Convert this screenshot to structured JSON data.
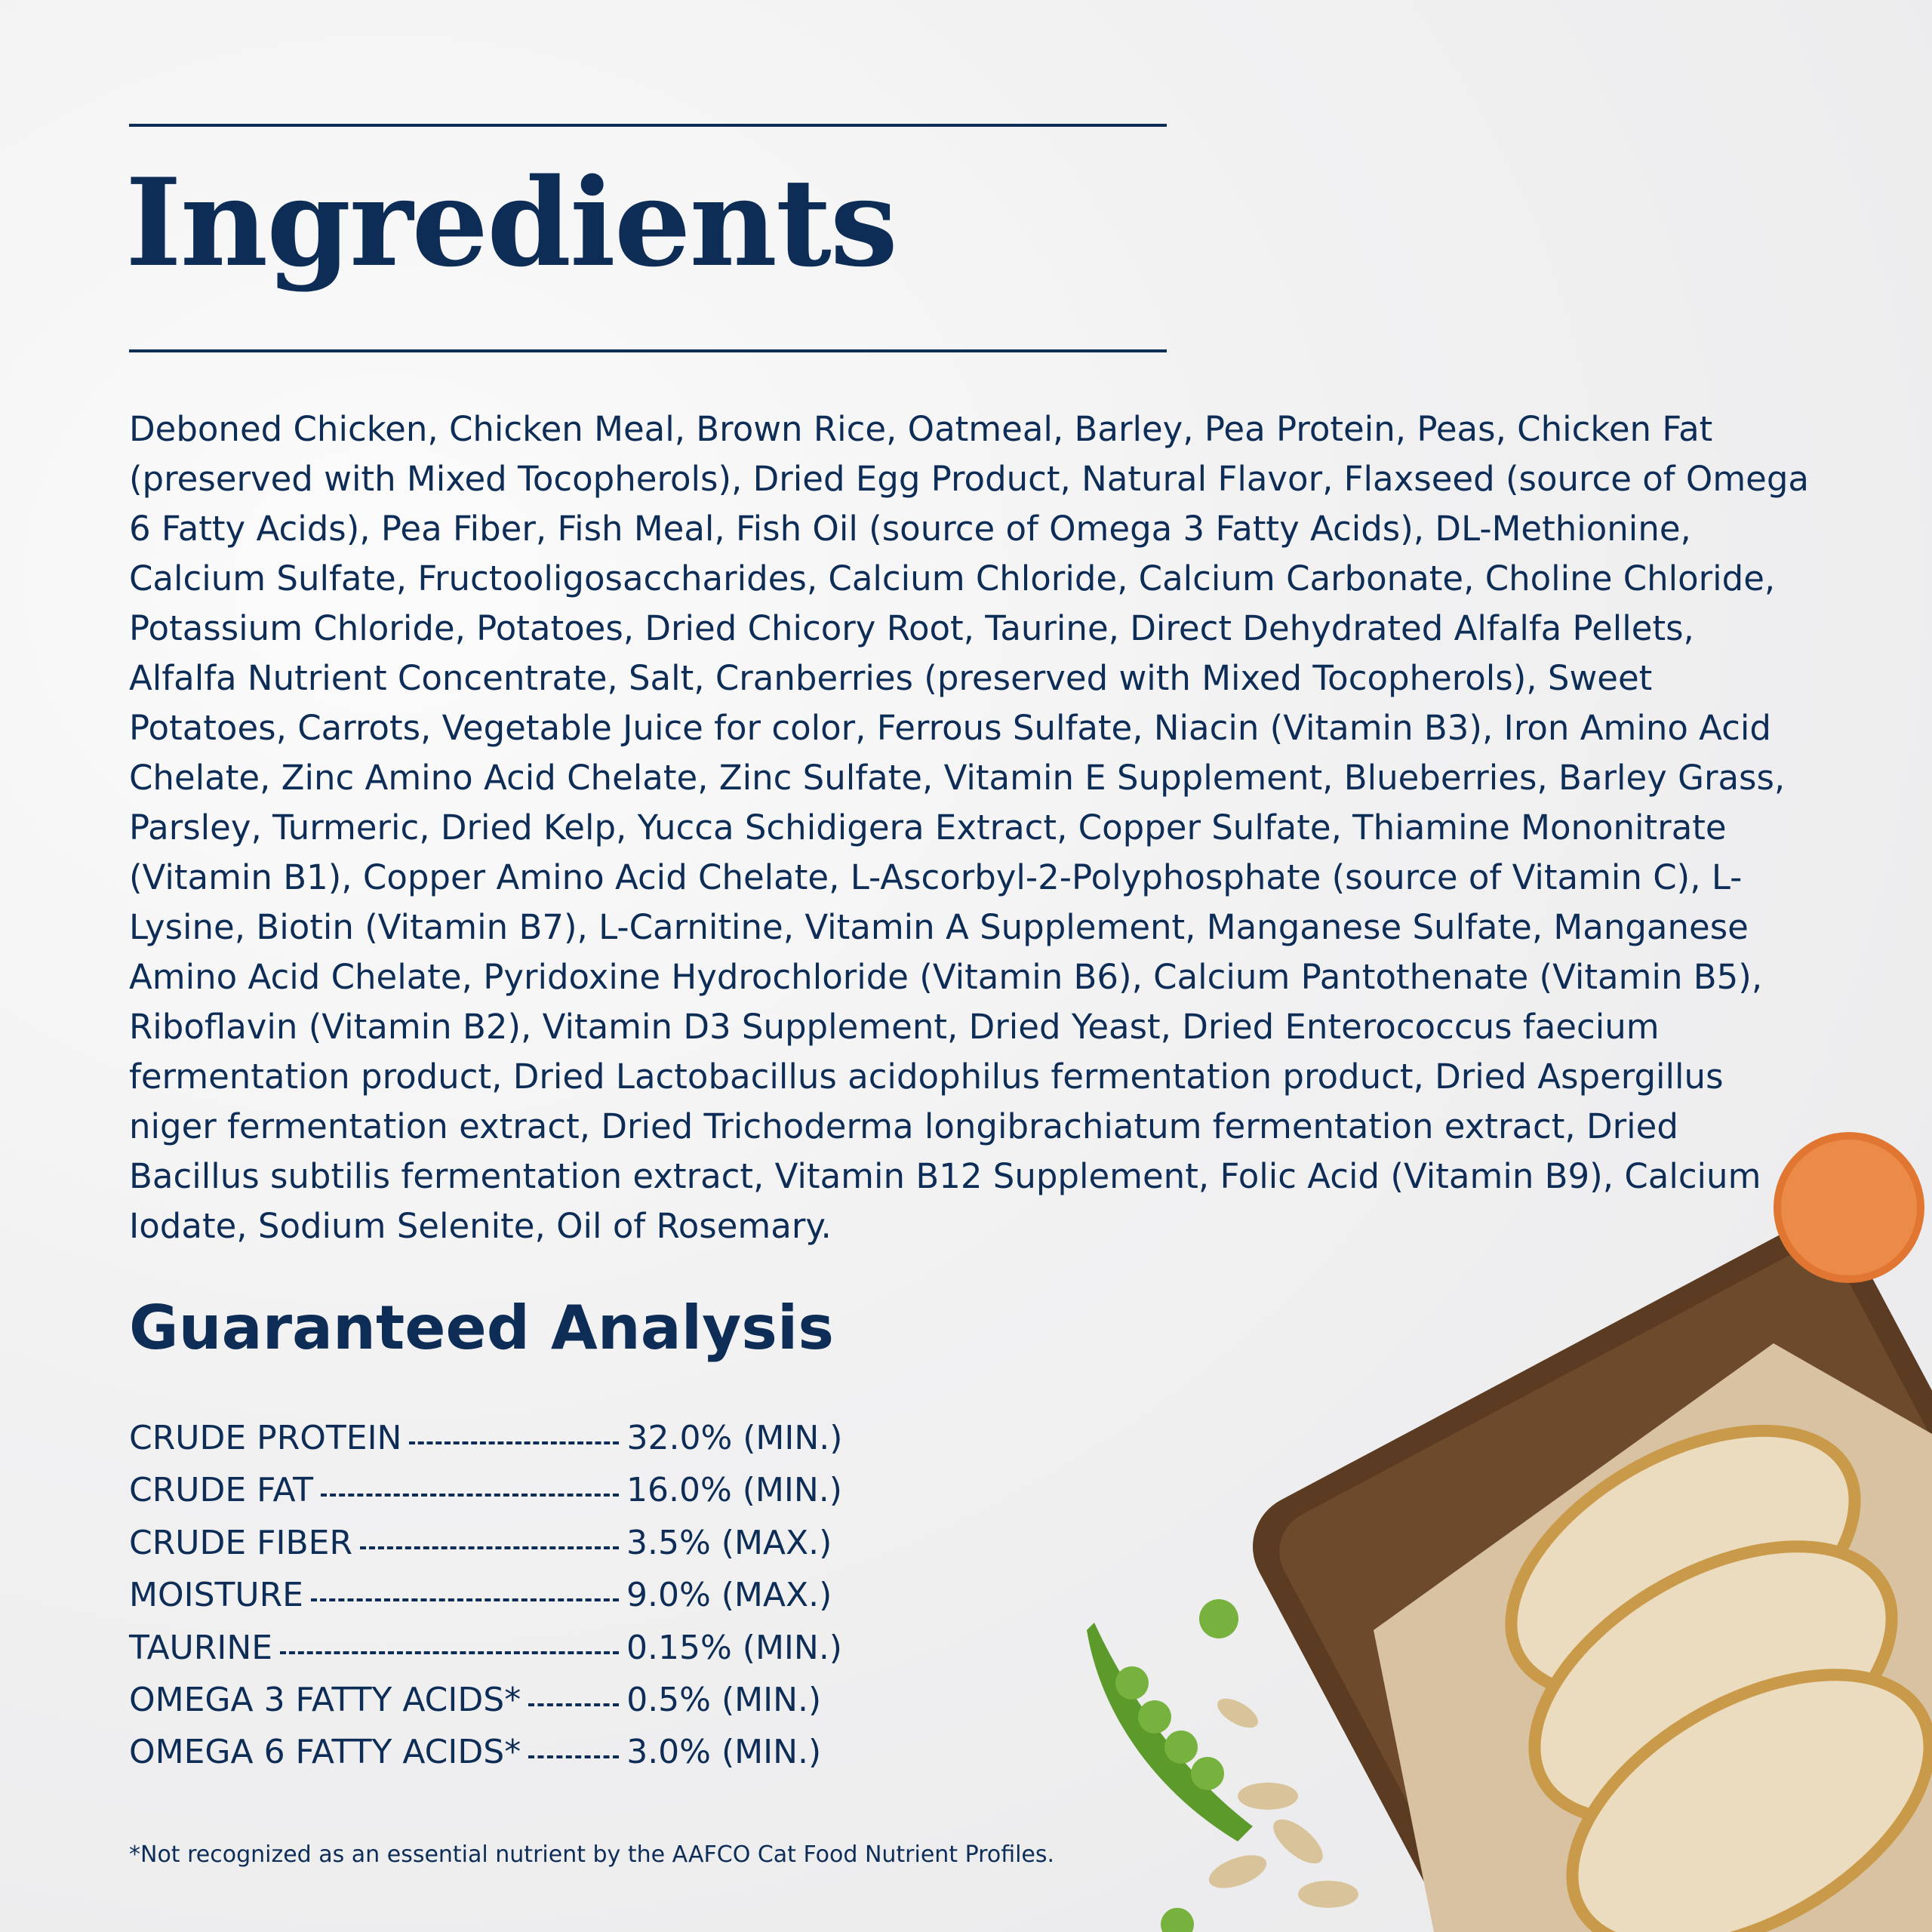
{
  "header": {
    "title": "Ingredients"
  },
  "ingredients": "Deboned Chicken, Chicken Meal, Brown Rice, Oatmeal, Barley, Pea Protein, Peas, Chicken Fat (preserved with Mixed Tocopherols), Dried Egg Product, Natural Flavor, Flaxseed (source of Omega 6 Fatty Acids), Pea Fiber, Fish Meal, Fish Oil (source of Omega 3 Fatty Acids), DL-Methionine, Calcium Sulfate, Fructooligosaccharides, Calcium Chloride, Calcium Carbonate, Choline Chloride, Potassium Chloride, Potatoes, Dried Chicory Root, Taurine, Direct Dehydrated Alfalfa Pellets, Alfalfa Nutrient Concentrate, Salt, Cranberries (preserved with Mixed Tocopherols), Sweet Potatoes, Carrots, Vegetable Juice for color, Ferrous Sulfate, Niacin (Vitamin B3), Iron Amino Acid Chelate, Zinc Amino Acid Chelate, Zinc Sulfate, Vitamin E Supplement, Blueberries, Barley Grass, Parsley, Turmeric, Dried Kelp, Yucca Schidigera Extract, Copper Sulfate, Thiamine Mononitrate (Vitamin B1), Copper Amino Acid Chelate, L-Ascorbyl-2-Polyphosphate (source of Vitamin C), L-Lysine, Biotin (Vitamin B7), L-Carnitine, Vitamin A Supplement, Manganese Sulfate, Manganese Amino Acid Chelate, Pyridoxine Hydrochloride (Vitamin B6), Calcium Pantothenate (Vitamin B5), Riboflavin (Vitamin B2), Vitamin D3 Supplement, Dried Yeast, Dried Enterococcus faecium fermentation product, Dried Lactobacillus acidophilus fermentation product, Dried Aspergillus niger fermentation extract, Dried Trichoderma longibrachiatum fermentation extract, Dried Bacillus subtilis fermentation extract, Vitamin B12 Supplement, Folic Acid (Vitamin B9), Calcium Iodate, Sodium Selenite, Oil of Rosemary.",
  "analysis": {
    "title": "Guaranteed Analysis",
    "rows": [
      [
        "CRUDE PROTEIN",
        "32.0% (MIN.)"
      ],
      [
        "CRUDE FAT",
        "16.0% (MIN.)"
      ],
      [
        "CRUDE FIBER",
        "3.5% (MAX.)"
      ],
      [
        "MOISTURE",
        "9.0% (MAX.)"
      ],
      [
        "TAURINE",
        "0.15% (MIN.)"
      ],
      [
        "OMEGA 3 FATTY ACIDS*",
        "0.5% (MIN.)"
      ],
      [
        "OMEGA 6 FATTY ACIDS*",
        "3.0% (MIN.)"
      ]
    ]
  },
  "footnote": "*Not recognized as an essential nutrient by the AAFCO Cat Food Nutrient Profiles."
}
